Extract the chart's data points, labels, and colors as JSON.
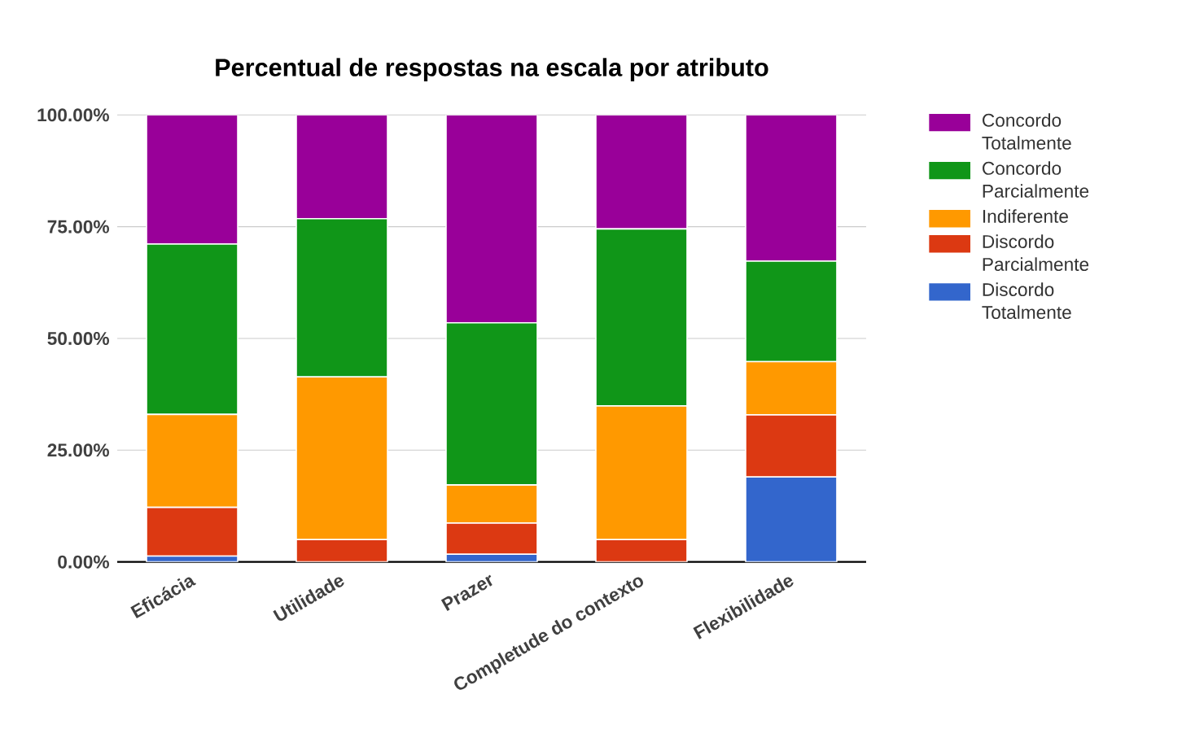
{
  "chart_data": {
    "type": "bar",
    "title": "Percentual de respostas na escala por atributo",
    "stacked": true,
    "categories": [
      "Eficácia",
      "Utilidade",
      "Prazer",
      "Completude do contexto",
      "Flexibilidade"
    ],
    "series": [
      {
        "name": "Discordo Totalmente",
        "color": "#3366cc",
        "values": [
          1.3,
          0,
          1.7,
          0,
          19.0
        ]
      },
      {
        "name": "Discordo Parcialmente",
        "color": "#dc3912",
        "values": [
          10.9,
          5.0,
          7.0,
          5.0,
          13.9
        ]
      },
      {
        "name": "Indiferente",
        "color": "#ff9900",
        "values": [
          20.8,
          36.4,
          8.5,
          29.9,
          11.9
        ]
      },
      {
        "name": "Concordo Parcialmente",
        "color": "#109618",
        "values": [
          38.1,
          35.4,
          36.3,
          39.6,
          22.5
        ]
      },
      {
        "name": "Concordo Totalmente",
        "color": "#990099",
        "values": [
          28.9,
          23.2,
          46.5,
          25.5,
          32.7
        ]
      }
    ],
    "ylim": [
      0,
      100
    ],
    "yticks": [
      {
        "value": 0,
        "label": "0.00%"
      },
      {
        "value": 25,
        "label": "25.00%"
      },
      {
        "value": 50,
        "label": "50.00%"
      },
      {
        "value": 75,
        "label": "75.00%"
      },
      {
        "value": 100,
        "label": "100.00%"
      }
    ],
    "grid": "y",
    "legend": "right"
  }
}
